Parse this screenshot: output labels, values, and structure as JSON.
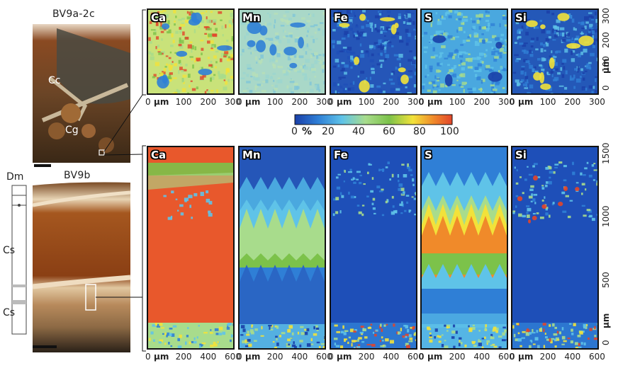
{
  "figure": {
    "sample_top": "BV9a-2c",
    "sample_bottom": "BV9b",
    "photo_labels": {
      "cc": "Cc",
      "cg": "Cg",
      "dm": "Dm",
      "cs1": "Cs",
      "cs2": "Cs"
    },
    "elements": [
      "Ca",
      "Mn",
      "Fe",
      "S",
      "Si"
    ],
    "colorbar": {
      "unit": "%",
      "ticks": [
        "0",
        "20",
        "40",
        "60",
        "80",
        "100"
      ],
      "colors": [
        "#1a3fa8",
        "#2f7fd6",
        "#5fc3e8",
        "#a8dc8c",
        "#7cc24a",
        "#f2e23a",
        "#f08a2a",
        "#e2452a"
      ]
    },
    "top_row": {
      "x_ticks": [
        "0",
        "100",
        "200",
        "300"
      ],
      "x_unit": "μm",
      "y_ticks": [
        "300",
        "200",
        "100",
        "0"
      ],
      "y_unit": "μm"
    },
    "bottom_row": {
      "x_ticks": [
        "0",
        "200",
        "400",
        "600"
      ],
      "x_unit": "μm",
      "y_ticks": [
        "1500",
        "1000",
        "500",
        "0"
      ],
      "y_unit": "μm"
    }
  }
}
